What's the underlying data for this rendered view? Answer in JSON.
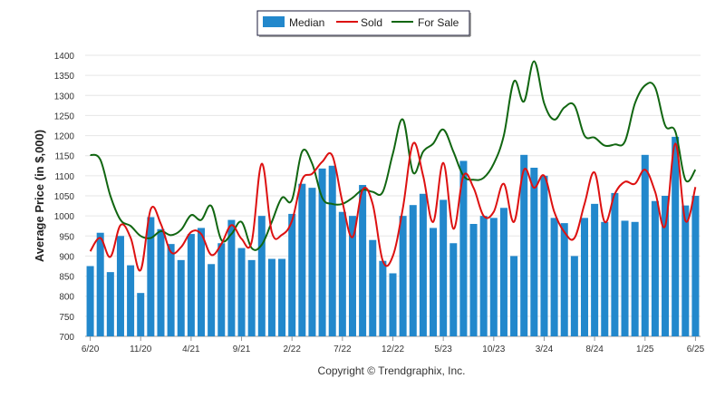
{
  "chart_data": {
    "type": "bar",
    "title": "",
    "ylabel": "Average Price (in $,000)",
    "xlabel": "",
    "ylim": [
      700,
      1400
    ],
    "yticks": [
      700,
      750,
      800,
      850,
      900,
      950,
      1000,
      1050,
      1100,
      1150,
      1200,
      1250,
      1300,
      1350,
      1400
    ],
    "grid": true,
    "legend_position": "top-center",
    "x_tick_labels": [
      {
        "index": 0,
        "label": "6/20"
      },
      {
        "index": 5,
        "label": "11/20"
      },
      {
        "index": 10,
        "label": "4/21"
      },
      {
        "index": 15,
        "label": "9/21"
      },
      {
        "index": 20,
        "label": "2/22"
      },
      {
        "index": 25,
        "label": "7/22"
      },
      {
        "index": 30,
        "label": "12/22"
      },
      {
        "index": 35,
        "label": "5/23"
      },
      {
        "index": 40,
        "label": "10/23"
      },
      {
        "index": 45,
        "label": "3/24"
      },
      {
        "index": 50,
        "label": "8/24"
      },
      {
        "index": 55,
        "label": "1/25"
      },
      {
        "index": 60,
        "label": "6/25"
      }
    ],
    "series": [
      {
        "name": "Median",
        "type": "bar",
        "color": "#2288cc",
        "values": [
          875,
          958,
          860,
          950,
          877,
          808,
          997,
          967,
          930,
          890,
          955,
          970,
          880,
          932,
          990,
          920,
          890,
          1000,
          893,
          893,
          1005,
          1080,
          1070,
          1118,
          1125,
          1010,
          1000,
          1077,
          940,
          888,
          857,
          1000,
          1027,
          1055,
          970,
          1040,
          932,
          1137,
          980,
          1000,
          995,
          1020,
          900,
          1152,
          1120,
          1100,
          995,
          982,
          900,
          995,
          1030,
          985,
          1057,
          988,
          985,
          1152,
          1037,
          1050,
          1197,
          1026,
          1050
        ]
      },
      {
        "name": "Sold",
        "type": "line",
        "color": "#dd1111",
        "values": [
          912,
          945,
          898,
          977,
          946,
          865,
          1017,
          980,
          910,
          922,
          960,
          955,
          903,
          930,
          977,
          943,
          935,
          1130,
          960,
          953,
          988,
          1090,
          1105,
          1135,
          1150,
          1035,
          947,
          1065,
          1030,
          888,
          900,
          1020,
          1180,
          1100,
          985,
          1132,
          968,
          1100,
          1070,
          1000,
          1010,
          1080,
          985,
          1115,
          1070,
          1100,
          1010,
          960,
          945,
          1030,
          1108,
          985,
          1055,
          1085,
          1080,
          1115,
          1060,
          975,
          1180,
          988,
          1072
        ]
      },
      {
        "name": "For Sale",
        "type": "line",
        "color": "#116611",
        "values": [
          1152,
          1140,
          1050,
          990,
          975,
          950,
          945,
          962,
          952,
          965,
          1002,
          990,
          1025,
          940,
          955,
          985,
          920,
          928,
          985,
          1045,
          1040,
          1160,
          1130,
          1045,
          1030,
          1030,
          1045,
          1065,
          1060,
          1060,
          1155,
          1240,
          1108,
          1160,
          1180,
          1215,
          1160,
          1100,
          1090,
          1095,
          1130,
          1200,
          1335,
          1285,
          1385,
          1280,
          1240,
          1270,
          1275,
          1200,
          1195,
          1175,
          1178,
          1185,
          1280,
          1325,
          1320,
          1225,
          1210,
          1090,
          1115
        ]
      }
    ]
  },
  "footer": {
    "copyright": "Copyright © Trendgraphix, Inc."
  }
}
